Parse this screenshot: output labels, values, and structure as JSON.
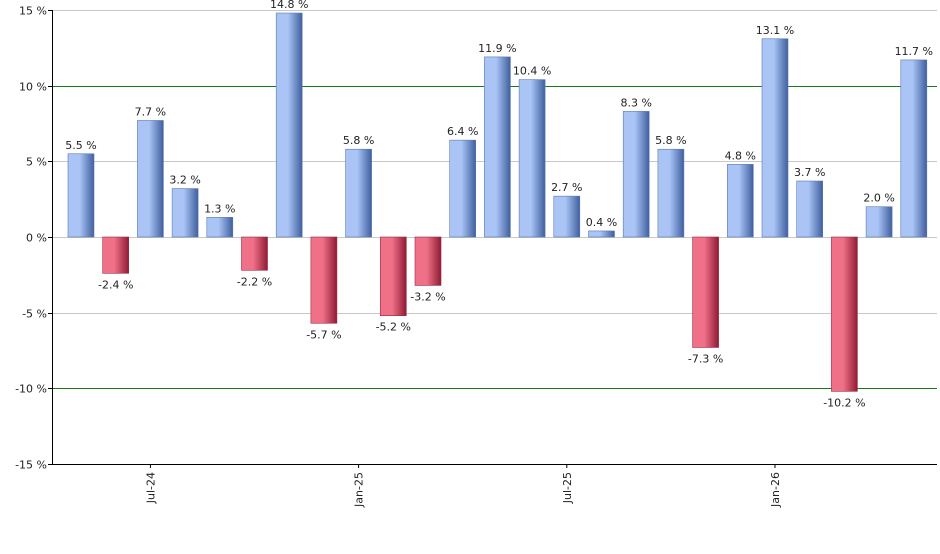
{
  "chart_data": {
    "type": "bar",
    "title": "",
    "xlabel": "",
    "ylabel": "",
    "ylim": [
      -15,
      15
    ],
    "yticks": [
      15,
      10,
      5,
      0,
      -5,
      -10,
      -15
    ],
    "ytick_labels": [
      "15 %",
      "10 %",
      "5 %",
      "0 %",
      "-5 %",
      "-10 %",
      "-15 %"
    ],
    "xtick_labels": [
      {
        "label": "Jul-24",
        "index": 2
      },
      {
        "label": "Jan-25",
        "index": 8
      },
      {
        "label": "Jul-25",
        "index": 14
      },
      {
        "label": "Jan-26",
        "index": 20
      }
    ],
    "values": [
      5.5,
      -2.4,
      7.7,
      3.2,
      1.3,
      -2.2,
      14.8,
      -5.7,
      5.8,
      -5.2,
      -3.2,
      6.4,
      11.9,
      10.4,
      2.7,
      0.4,
      8.3,
      5.8,
      -7.3,
      4.8,
      13.1,
      3.7,
      -10.2,
      2.0,
      11.7
    ],
    "data_labels": [
      "5.5 %",
      "-2.4 %",
      "7.7 %",
      "3.2 %",
      "1.3 %",
      "-2.2 %",
      "14.8 %",
      "-5.7 %",
      "5.8 %",
      "-5.2 %",
      "-3.2 %",
      "6.4 %",
      "11.9 %",
      "10.4 %",
      "2.7 %",
      "0.4 %",
      "8.3 %",
      "5.8 %",
      "-7.3 %",
      "4.8 %",
      "13.1 %",
      "3.7 %",
      "-10.2 %",
      "2.0 %",
      "11.7 %"
    ],
    "grid": true,
    "highlight_gridlines": [
      10,
      -10
    ],
    "colors": {
      "positive_light": "#a9c4f5",
      "positive_dark": "#3f5f9f",
      "negative_light": "#f07088",
      "negative_dark": "#8e1c34",
      "gridline": "#c8c8c8",
      "highlight_gridline": "#1a7a1a",
      "axis": "#000000"
    }
  }
}
